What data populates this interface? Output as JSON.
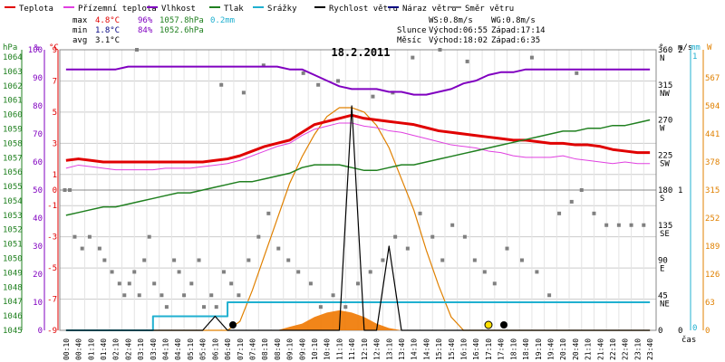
{
  "legend": [
    {
      "label": "Teplota",
      "color": "#e00000"
    },
    {
      "label": "Přízemní teplota",
      "color": "#e040e0"
    },
    {
      "label": "Vlhkost",
      "color": "#8000c0"
    },
    {
      "label": "Tlak",
      "color": "#208020"
    },
    {
      "label": "Srážky",
      "color": "#20b0d0"
    },
    {
      "label": "Rychlost větru",
      "color": "#000000"
    },
    {
      "label": "Náraz větru",
      "color": "#000080"
    },
    {
      "label": "Směr větru",
      "color": "#808080"
    }
  ],
  "stats": {
    "max_label": "max",
    "max_temp": "4.8°C",
    "max_hum": "96%",
    "max_press": "1057.8hPa",
    "max_rain": "0.2mm",
    "min_label": "min",
    "min_temp": "1.8°C",
    "min_hum": "84%",
    "min_press": "1052.6hPa",
    "avg_label": "avg",
    "avg_temp": "3.1°C"
  },
  "wind": {
    "ws": "WS:0.8m/s",
    "wg": "WG:0.8m/s"
  },
  "sun": {
    "label": "Slunce",
    "rise": "Východ:06:55",
    "set": "Západ:17:14"
  },
  "moon": {
    "label": "Měsíc",
    "rise": "Východ:18:02",
    "set": "Západ:6:35"
  },
  "date": "18.2.2011",
  "axis_units": {
    "hpa": "hPa",
    "pct": "%",
    "degc": "°C",
    "deg": "°",
    "ms": "m/s",
    "mm": "mm",
    "w": "W",
    "time": "čas"
  },
  "colors": {
    "temp": "#e00000",
    "ground": "#e040e0",
    "hum": "#8000c0",
    "press": "#208020",
    "rain": "#20b0d0",
    "wind": "#000000",
    "dir": "#808080",
    "solar_curve": "#e08000",
    "solar": "#f07800",
    "grid": "#cccccc",
    "hpa_axis": "#208020",
    "pct_axis": "#8000c0",
    "temp_axis": "#e00000",
    "rain_axis": "#20b0d0",
    "solar_axis": "#e08000"
  },
  "chart_data": {
    "type": "line",
    "title": "18.2.2011",
    "x": [
      "00:10",
      "00:40",
      "01:10",
      "01:40",
      "02:10",
      "02:40",
      "03:10",
      "03:40",
      "04:10",
      "04:40",
      "05:10",
      "05:40",
      "06:10",
      "06:40",
      "07:10",
      "07:40",
      "08:10",
      "08:40",
      "09:10",
      "09:40",
      "10:10",
      "10:40",
      "11:10",
      "11:40",
      "12:10",
      "12:40",
      "13:10",
      "13:40",
      "14:10",
      "14:40",
      "15:10",
      "15:40",
      "16:10",
      "16:40",
      "17:10",
      "17:40",
      "18:10",
      "18:40",
      "19:10",
      "19:40",
      "20:10",
      "20:40",
      "21:10",
      "21:40",
      "22:10",
      "22:40",
      "23:10",
      "23:40"
    ],
    "axes": {
      "temp": {
        "label": "°C",
        "range": [
          -9,
          9
        ],
        "ticks": [
          "9",
          "7",
          "5",
          "3",
          "1",
          "0",
          "-1",
          "-3",
          "-5",
          "-7",
          "-9"
        ],
        "tick_values": [
          9,
          7,
          5,
          3,
          1,
          0,
          -1,
          -3,
          -5,
          -7,
          -9
        ]
      },
      "humidity": {
        "label": "%",
        "range": [
          0,
          100
        ],
        "ticks": [
          "100",
          "90",
          "80",
          "70",
          "60",
          "50",
          "40",
          "30",
          "20",
          "10",
          "0"
        ],
        "tick_values": [
          100,
          90,
          80,
          70,
          60,
          50,
          40,
          30,
          20,
          10,
          0
        ]
      },
      "pressure": {
        "label": "hPa",
        "ticks": [
          "1064",
          "1063",
          "1062",
          "1061",
          "1060",
          "1059",
          "1058",
          "1057",
          "1056",
          "1055",
          "1054",
          "1053",
          "1052",
          "1051",
          "1050",
          "1049",
          "1048",
          "1047",
          "1046",
          "1045"
        ]
      },
      "direction": {
        "label": "°",
        "range": [
          0,
          360
        ],
        "ticks": [
          {
            "v": "360",
            "d": "N",
            "val": 360
          },
          {
            "v": "315",
            "d": "NW",
            "val": 315
          },
          {
            "v": "270",
            "d": "W",
            "val": 270
          },
          {
            "v": "225",
            "d": "SW",
            "val": 225
          },
          {
            "v": "180",
            "d": "S",
            "val": 180
          },
          {
            "v": "135",
            "d": "SE",
            "val": 135
          },
          {
            "v": "90",
            "d": "E",
            "val": 90
          },
          {
            "v": "45",
            "d": "NE",
            "val": 45
          },
          {
            "v": "0",
            "d": "",
            "val": 0
          }
        ]
      },
      "wind_speed": {
        "label": "m/s",
        "range": [
          0,
          2
        ],
        "ticks": [
          "2",
          "1",
          "0"
        ],
        "tick_values": [
          2,
          1,
          0
        ]
      },
      "rain": {
        "label": "mm",
        "range": [
          0,
          2
        ],
        "ticks": [
          "1",
          "0"
        ],
        "tick_values": [
          1,
          0
        ]
      },
      "solar": {
        "label": "W",
        "range": [
          0,
          630
        ],
        "ticks": [
          "567",
          "504",
          "441",
          "378",
          "315",
          "252",
          "189",
          "126",
          "63",
          "0"
        ],
        "tick_values": [
          567,
          504,
          441,
          378,
          315,
          252,
          189,
          126,
          63,
          0
        ]
      }
    },
    "series": [
      {
        "name": "Teplota",
        "axis": "temp",
        "values": [
          1.9,
          2.0,
          1.9,
          1.8,
          1.8,
          1.8,
          1.8,
          1.8,
          1.8,
          1.8,
          1.8,
          1.8,
          1.9,
          2.0,
          2.2,
          2.5,
          2.8,
          3.0,
          3.2,
          3.7,
          4.2,
          4.4,
          4.6,
          4.8,
          4.6,
          4.5,
          4.4,
          4.3,
          4.2,
          4.0,
          3.8,
          3.7,
          3.6,
          3.5,
          3.4,
          3.3,
          3.2,
          3.2,
          3.1,
          3.0,
          3.0,
          2.9,
          2.9,
          2.8,
          2.6,
          2.5,
          2.4,
          2.4
        ]
      },
      {
        "name": "Přízemní teplota",
        "axis": "temp",
        "values": [
          1.4,
          1.6,
          1.5,
          1.4,
          1.3,
          1.3,
          1.3,
          1.3,
          1.4,
          1.4,
          1.4,
          1.5,
          1.6,
          1.7,
          1.9,
          2.2,
          2.5,
          2.8,
          3.0,
          3.5,
          3.9,
          4.1,
          4.3,
          4.3,
          4.1,
          4.0,
          3.8,
          3.7,
          3.5,
          3.3,
          3.1,
          2.9,
          2.8,
          2.7,
          2.5,
          2.4,
          2.2,
          2.1,
          2.1,
          2.1,
          2.2,
          2.0,
          1.9,
          1.8,
          1.7,
          1.8,
          1.7,
          1.7
        ]
      },
      {
        "name": "Vlhkost",
        "axis": "humidity",
        "values": [
          93,
          93,
          93,
          93,
          93,
          94,
          94,
          94,
          94,
          94,
          94,
          94,
          94,
          94,
          94,
          94,
          94,
          94,
          93,
          93,
          91,
          89,
          87,
          86,
          86,
          86,
          85,
          85,
          84,
          84,
          85,
          86,
          88,
          89,
          91,
          92,
          92,
          93,
          93,
          93,
          93,
          93,
          93,
          93,
          93,
          93,
          93,
          93
        ]
      },
      {
        "name": "Tlak",
        "axis": "humidity",
        "values": [
          41,
          42,
          43,
          44,
          44,
          45,
          46,
          47,
          48,
          49,
          49,
          50,
          51,
          52,
          53,
          53,
          54,
          55,
          56,
          58,
          59,
          59,
          59,
          58,
          57,
          57,
          58,
          59,
          59,
          60,
          61,
          62,
          63,
          64,
          65,
          66,
          67,
          68,
          69,
          70,
          71,
          71,
          72,
          72,
          73,
          73,
          74,
          75
        ]
      },
      {
        "name": "Srážky",
        "axis": "rain",
        "values": [
          0,
          0,
          0,
          0,
          0,
          0,
          0,
          0.1,
          0.1,
          0.1,
          0.1,
          0.1,
          0.1,
          0.2,
          0.2,
          0.2,
          0.2,
          0.2,
          0.2,
          0.2,
          0.2,
          0.2,
          0.2,
          0.2,
          0.2,
          0.2,
          0.2,
          0.2,
          0.2,
          0.2,
          0.2,
          0.2,
          0.2,
          0.2,
          0.2,
          0.2,
          0.2,
          0.2,
          0.2,
          0.2,
          0.2,
          0.2,
          0.2,
          0.2,
          0.2,
          0.2,
          0.2,
          0.2
        ]
      },
      {
        "name": "Rychlost větru",
        "axis": "wind_speed",
        "values": [
          0,
          0,
          0,
          0,
          0,
          0,
          0,
          0,
          0,
          0,
          0,
          0,
          0.1,
          0,
          0,
          0,
          0,
          0,
          0,
          0,
          0,
          0,
          0,
          1.6,
          0,
          0,
          0.6,
          0,
          0,
          0,
          0,
          0,
          0,
          0,
          0,
          0,
          0,
          0,
          0,
          0,
          0,
          0,
          0,
          0,
          0,
          0,
          0,
          0
        ]
      },
      {
        "name": "Sluneční záření",
        "axis": "solar",
        "values": [
          0,
          0,
          0,
          0,
          0,
          0,
          0,
          0,
          0,
          0,
          0,
          0,
          0,
          0,
          0,
          0,
          0,
          0,
          8,
          15,
          30,
          40,
          45,
          40,
          30,
          15,
          5,
          0,
          0,
          0,
          0,
          0,
          0,
          0,
          0,
          0,
          0,
          0,
          0,
          0,
          0,
          0,
          0,
          0,
          0,
          0,
          0,
          0
        ]
      },
      {
        "name": "Teoretické záření",
        "axis": "solar",
        "values": [
          0,
          0,
          0,
          0,
          0,
          0,
          0,
          0,
          0,
          0,
          0,
          0,
          0,
          0,
          20,
          90,
          170,
          250,
          330,
          390,
          440,
          480,
          500,
          500,
          490,
          460,
          410,
          340,
          270,
          180,
          100,
          30,
          0,
          0,
          0,
          0,
          0,
          0,
          0,
          0,
          0,
          0,
          0,
          0,
          0,
          0,
          0,
          0
        ]
      },
      {
        "name": "Směr větru",
        "axis": "direction",
        "type": "scatter",
        "points": [
          [
            0.2,
            180
          ],
          [
            0.4,
            180
          ],
          [
            0.6,
            120
          ],
          [
            0.9,
            105
          ],
          [
            1.2,
            120
          ],
          [
            1.6,
            105
          ],
          [
            1.8,
            90
          ],
          [
            2.1,
            75
          ],
          [
            2.4,
            60
          ],
          [
            2.6,
            45
          ],
          [
            2.8,
            60
          ],
          [
            3.0,
            75
          ],
          [
            3.2,
            45
          ],
          [
            3.4,
            90
          ],
          [
            3.6,
            120
          ],
          [
            3.8,
            60
          ],
          [
            4.1,
            45
          ],
          [
            4.3,
            30
          ],
          [
            4.6,
            90
          ],
          [
            4.8,
            75
          ],
          [
            5.0,
            45
          ],
          [
            5.3,
            60
          ],
          [
            5.6,
            90
          ],
          [
            5.8,
            30
          ],
          [
            6.1,
            45
          ],
          [
            6.3,
            30
          ],
          [
            6.6,
            75
          ],
          [
            6.9,
            60
          ],
          [
            7.2,
            45
          ],
          [
            7.6,
            90
          ],
          [
            8.0,
            120
          ],
          [
            8.4,
            150
          ],
          [
            8.8,
            105
          ],
          [
            9.2,
            90
          ],
          [
            9.6,
            75
          ],
          [
            10.1,
            60
          ],
          [
            10.5,
            30
          ],
          [
            11.0,
            45
          ],
          [
            11.5,
            30
          ],
          [
            12.0,
            60
          ],
          [
            12.5,
            75
          ],
          [
            13.0,
            90
          ],
          [
            13.5,
            120
          ],
          [
            14.0,
            105
          ],
          [
            14.5,
            150
          ],
          [
            15.0,
            120
          ],
          [
            15.4,
            90
          ],
          [
            15.8,
            135
          ],
          [
            16.3,
            120
          ],
          [
            16.7,
            90
          ],
          [
            17.1,
            75
          ],
          [
            17.5,
            60
          ],
          [
            18.0,
            105
          ],
          [
            18.6,
            90
          ],
          [
            19.2,
            75
          ],
          [
            19.7,
            45
          ],
          [
            20.1,
            150
          ],
          [
            20.6,
            165
          ],
          [
            21.0,
            180
          ],
          [
            21.5,
            150
          ],
          [
            22.0,
            135
          ],
          [
            22.5,
            135
          ],
          [
            23.0,
            135
          ],
          [
            23.5,
            135
          ],
          [
            9.8,
            330
          ],
          [
            10.4,
            315
          ],
          [
            11.2,
            320
          ],
          [
            12.6,
            300
          ],
          [
            13.4,
            305
          ],
          [
            14.2,
            350
          ],
          [
            15.3,
            360
          ],
          [
            16.4,
            345
          ],
          [
            19.0,
            350
          ],
          [
            20.8,
            330
          ],
          [
            3.1,
            360
          ],
          [
            6.5,
            315
          ],
          [
            7.4,
            305
          ],
          [
            8.2,
            340
          ]
        ]
      }
    ]
  }
}
